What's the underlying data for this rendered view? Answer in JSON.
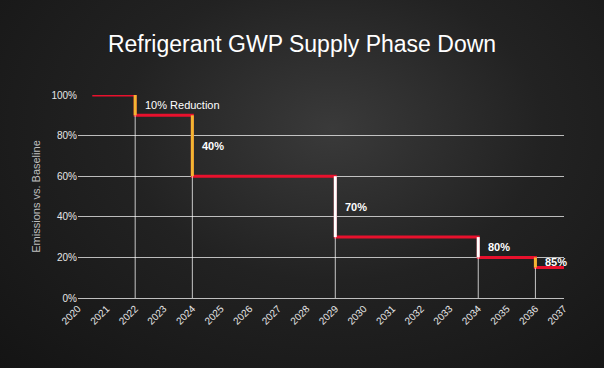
{
  "chart_data": {
    "type": "line",
    "title": "Refrigerant GWP Supply Phase Down",
    "y_label": "Emissions vs. Baseline",
    "x": [
      2020.5,
      2022,
      2024,
      2029,
      2034,
      2036,
      2037
    ],
    "values": [
      100,
      90,
      60,
      30,
      20,
      15,
      15
    ],
    "color": "#e8112d",
    "line_style": "step",
    "xlim": [
      2020,
      2037
    ],
    "xticks": [
      2020,
      2021,
      2022,
      2023,
      2024,
      2025,
      2026,
      2027,
      2028,
      2029,
      2030,
      2031,
      2032,
      2033,
      2034,
      2035,
      2036,
      2037
    ],
    "ylim": [
      0,
      100
    ],
    "yticks": [
      {
        "value": 0,
        "label": "0%"
      },
      {
        "value": 20,
        "label": "20%"
      },
      {
        "value": 40,
        "label": "40%"
      },
      {
        "value": 60,
        "label": "60%"
      },
      {
        "value": 80,
        "label": "80%"
      },
      {
        "value": 100,
        "label": "100%"
      }
    ],
    "grid": true,
    "annotations": [
      {
        "text": "10% Reduction",
        "x": 2022
      },
      {
        "text": "40%",
        "x": 2024
      },
      {
        "text": "70%",
        "x": 2029
      },
      {
        "text": "80%",
        "x": 2034
      },
      {
        "text": "85%",
        "x": 2036
      }
    ]
  }
}
